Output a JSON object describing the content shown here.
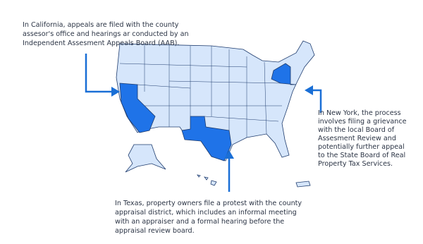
{
  "annotations": [
    {
      "lines": [
        "In California, appeals are filed with the county",
        "assesor's office and hearings ar conducted by an",
        "Independent Assesment Appeals Board (AAB)."
      ]
    },
    {
      "lines": [
        "In New York, the process",
        "involves filing a grievance",
        "with the local Board of",
        "Assesment Review and",
        "potentially further appeal",
        "to the State Board of Real",
        "Property Tax Services."
      ]
    },
    {
      "lines": [
        "In Texas, property owners file a protest with the county",
        "appraisal district, which includes an informal meeting",
        "with an appraiser and a formal hearing before the",
        "appraisal review board."
      ]
    }
  ]
}
